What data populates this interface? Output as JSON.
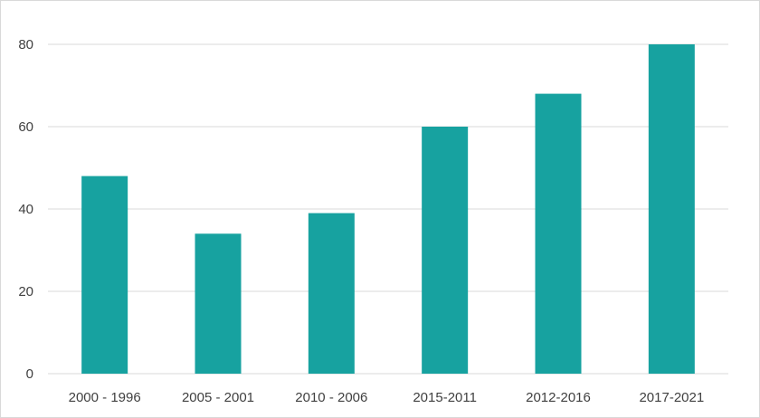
{
  "chart_data": {
    "type": "bar",
    "title": "",
    "xlabel": "",
    "ylabel": "",
    "categories": [
      "2000 - 1996",
      "2005 - 2001",
      "2010 - 2006",
      "2015-2011",
      "2012-2016",
      "2017-2021"
    ],
    "values": [
      48,
      34,
      39,
      60,
      68,
      80
    ],
    "ylim": [
      0,
      80
    ],
    "yticks": [
      0,
      20,
      40,
      60,
      80
    ],
    "grid": true,
    "legend": "none",
    "bar_color": "#17a2a0",
    "gridline_color": "#d9d9d9"
  }
}
